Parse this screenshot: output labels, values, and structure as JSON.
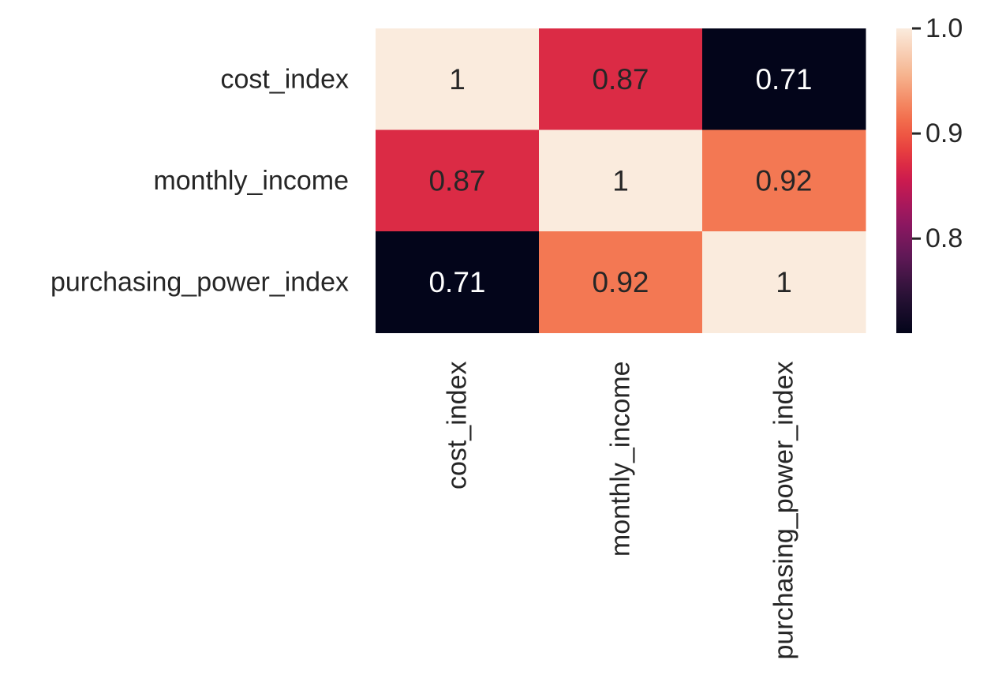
{
  "chart_data": {
    "type": "heatmap",
    "title": "",
    "xlabel": "",
    "ylabel": "",
    "rows": [
      "cost_index",
      "monthly_income",
      "purchasing_power_index"
    ],
    "columns": [
      "cost_index",
      "monthly_income",
      "purchasing_power_index"
    ],
    "values": [
      [
        1.0,
        0.87,
        0.71
      ],
      [
        0.87,
        1.0,
        0.92
      ],
      [
        0.71,
        0.92,
        1.0
      ]
    ],
    "cell_labels": [
      [
        "1",
        "0.87",
        "0.71"
      ],
      [
        "0.87",
        "1",
        "0.92"
      ],
      [
        "0.71",
        "0.92",
        "1"
      ]
    ],
    "colorbar": {
      "colormap": "rocket",
      "range": [
        0.71,
        1.0
      ],
      "ticks": [
        0.8,
        0.9,
        1.0
      ],
      "tick_labels": [
        "0.8",
        "0.9",
        "1.0"
      ]
    },
    "annotations_on": true,
    "grid": false,
    "colors": {
      "low": "#03051a",
      "high": "#faebdd"
    }
  }
}
